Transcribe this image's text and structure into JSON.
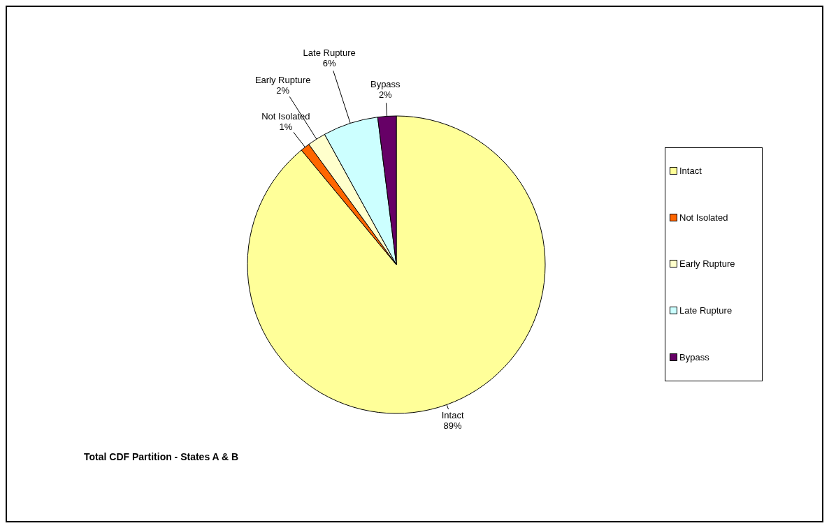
{
  "chart_data": {
    "type": "pie",
    "title": "Total CDF Partition - States A & B",
    "categories": [
      "Intact",
      "Not Isolated",
      "Early Rupture",
      "Late Rupture",
      "Bypass"
    ],
    "values": [
      89,
      1,
      2,
      6,
      2
    ],
    "value_labels": [
      "89%",
      "1%",
      "2%",
      "6%",
      "2%"
    ],
    "colors": [
      "#ffff99",
      "#ff6600",
      "#ffffcc",
      "#ccffff",
      "#660066"
    ],
    "legend": "right"
  }
}
